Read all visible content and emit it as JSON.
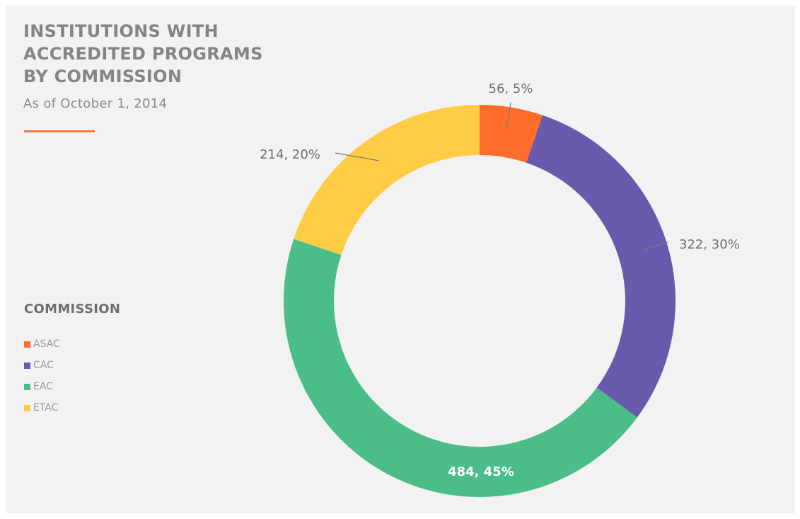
{
  "chart_data": {
    "type": "pie",
    "title_lines": [
      "INSTITUTIONS WITH",
      "ACCREDITED PROGRAMS",
      "BY COMMISSION"
    ],
    "subtitle": "As of October 1, 2014",
    "legend_title": "COMMISSION",
    "legend_placement": "left",
    "donut": true,
    "slices": [
      {
        "name": "ASAC",
        "value": 56,
        "percent": 5,
        "label": "56, 5%",
        "color": "#ff6c2c"
      },
      {
        "name": "CAC",
        "value": 322,
        "percent": 30,
        "label": "322, 30%",
        "color": "#6a5aad"
      },
      {
        "name": "EAC",
        "value": 484,
        "percent": 45,
        "label": "484, 45%",
        "color": "#4bbd88"
      },
      {
        "name": "ETAC",
        "value": 214,
        "percent": 20,
        "label": "214, 20%",
        "color": "#ffcc45"
      }
    ]
  },
  "colors": {
    "background": "#f2f2f2",
    "accent_rule": "#f07b3a",
    "title": "#858585"
  }
}
